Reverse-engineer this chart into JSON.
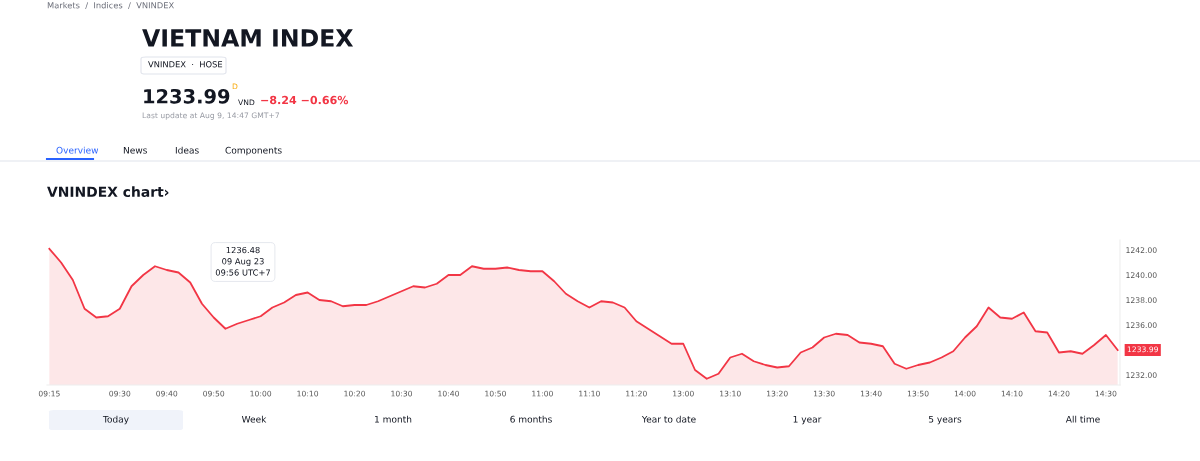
{
  "chart_data": {
    "type": "area",
    "title": "VIETNAM INDEX",
    "subtitle": "VNINDEX chart›",
    "annotations": [
      "Markets  /  Indices  /  VNINDEX",
      "VNINDEX  ·  HOSE",
      "1233.99",
      "D",
      "VND",
      "−8.24 −0.66%",
      "Last update at Aug 9, 14:47 GMT+7",
      "Overview",
      "News",
      "Ideas",
      "Components",
      "1236.48\n09 Aug 23\n09:56 UTC+7",
      "1233.99",
      "Today",
      "Week",
      "1 month",
      "6 months",
      "Year to date",
      "1 year",
      "5 years",
      "All time"
    ],
    "categories": [
      "09:15",
      null,
      null,
      null,
      null,
      null,
      "09:30",
      null,
      null,
      null,
      "09:40",
      null,
      null,
      null,
      "09:50",
      null,
      null,
      null,
      "10:00",
      null,
      null,
      null,
      "10:10",
      null,
      null,
      null,
      "10:20",
      null,
      null,
      null,
      "10:30",
      null,
      null,
      null,
      "10:40",
      null,
      null,
      null,
      "10:50",
      null,
      null,
      null,
      "11:00",
      null,
      null,
      null,
      "11:10",
      null,
      null,
      null,
      "11:20",
      null,
      null,
      null,
      "13:00",
      null,
      null,
      null,
      "13:10",
      null,
      null,
      null,
      "13:20",
      null,
      null,
      null,
      "13:30",
      null,
      null,
      null,
      "13:40",
      null,
      null,
      null,
      "13:50",
      null,
      null,
      null,
      "14:00",
      null,
      null,
      null,
      "14:10",
      null,
      null,
      null,
      "14:20",
      null,
      null,
      null,
      "14:30",
      null
    ],
    "series": [
      {
        "color": "#f23645",
        "values": [
          1242.1,
          1241.0,
          1239.6,
          1237.3,
          1236.6,
          1236.7,
          1237.3,
          1239.1,
          1240.0,
          1240.7,
          1240.4,
          1240.2,
          1239.4,
          1237.7,
          1236.6,
          1235.7,
          1236.1,
          1236.4,
          1236.7,
          1237.4,
          1237.8,
          1238.4,
          1238.6,
          1238.0,
          1237.9,
          1237.5,
          1237.6,
          1237.6,
          1237.9,
          1238.3,
          1238.7,
          1239.1,
          1239.0,
          1239.3,
          1240.0,
          1240.0,
          1240.7,
          1240.5,
          1240.5,
          1240.6,
          1240.4,
          1240.3,
          1240.3,
          1239.5,
          1238.5,
          1237.9,
          1237.4,
          1237.9,
          1237.8,
          1237.4,
          1236.3,
          1235.7,
          1235.1,
          1234.5,
          1234.5,
          1232.4,
          1231.7,
          1232.1,
          1233.4,
          1233.7,
          1233.1,
          1232.8,
          1232.6,
          1232.7,
          1233.8,
          1234.2,
          1235.0,
          1235.3,
          1235.2,
          1234.6,
          1234.5,
          1234.3,
          1232.9,
          1232.5,
          1232.8,
          1233.0,
          1233.4,
          1233.9,
          1235.0,
          1235.9,
          1237.4,
          1236.6,
          1236.5,
          1237.0,
          1235.5,
          1235.4,
          1233.8,
          1233.9,
          1233.7,
          1234.4,
          1235.2,
          1234.0
        ]
      }
    ],
    "ylim": [
      1231.2,
      1242.8
    ],
    "yticks": [
      {
        "value": 1232,
        "label": "1232.00"
      },
      {
        "value": 1236,
        "label": "1236.00"
      },
      {
        "value": 1238,
        "label": "1238.00"
      },
      {
        "value": 1240,
        "label": "1240.00"
      },
      {
        "value": 1242,
        "label": "1242.00"
      }
    ],
    "grid": false,
    "legend": false
  }
}
